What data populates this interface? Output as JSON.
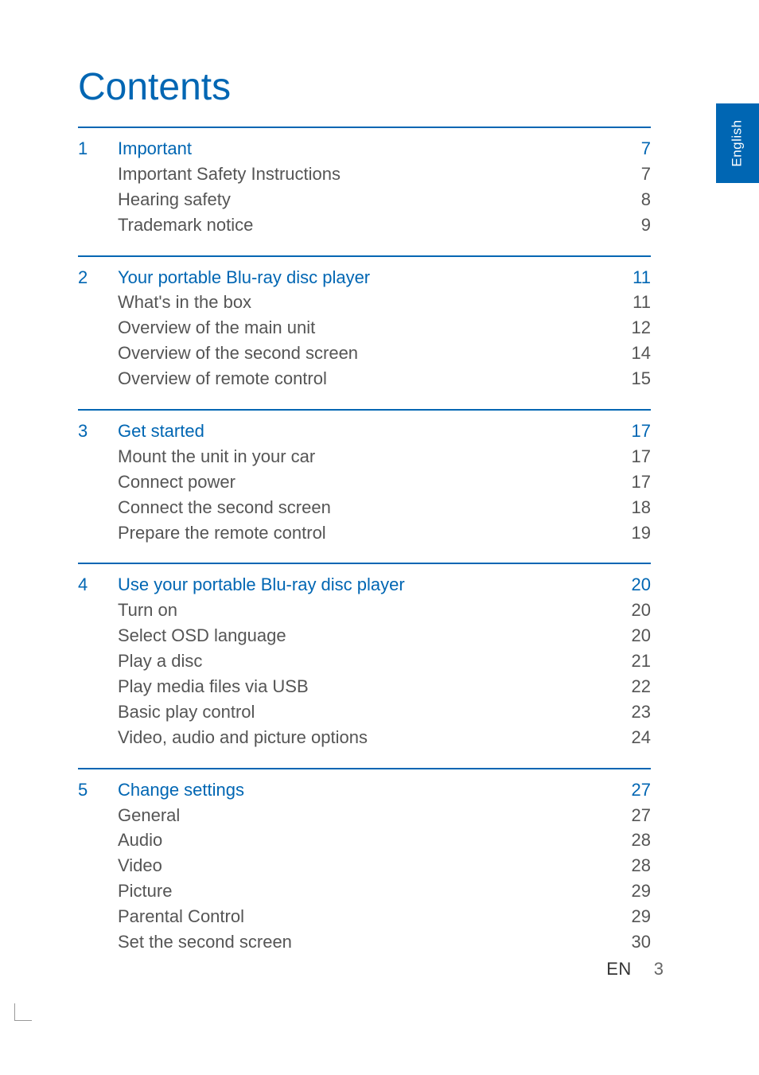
{
  "title": "Contents",
  "language_tab": "English",
  "colors": {
    "accent": "#0066b3",
    "body": "#555555",
    "bg": "#ffffff"
  },
  "typography": {
    "title_size": 48,
    "row_size": 22,
    "tab_size": 17
  },
  "footer": {
    "lang": "EN",
    "page": "3"
  },
  "sections": [
    {
      "num": "1",
      "heading": "Important",
      "page": "7",
      "subs": [
        {
          "label": "Important Safety Instructions",
          "page": "7"
        },
        {
          "label": "Hearing safety",
          "page": "8"
        },
        {
          "label": "Trademark notice",
          "page": "9"
        }
      ]
    },
    {
      "num": "2",
      "heading": "Your portable Blu-ray disc player",
      "page": "11",
      "subs": [
        {
          "label": "What's in the box",
          "page": "11"
        },
        {
          "label": "Overview of the main unit",
          "page": "12"
        },
        {
          "label": "Overview of the second screen",
          "page": "14"
        },
        {
          "label": "Overview of remote control",
          "page": "15"
        }
      ]
    },
    {
      "num": "3",
      "heading": "Get started",
      "page": "17",
      "subs": [
        {
          "label": "Mount the unit in your car",
          "page": "17"
        },
        {
          "label": "Connect power",
          "page": "17"
        },
        {
          "label": "Connect the second screen",
          "page": "18"
        },
        {
          "label": "Prepare the remote control",
          "page": "19"
        }
      ]
    },
    {
      "num": "4",
      "heading": "Use your portable Blu-ray disc player",
      "page": "20",
      "subs": [
        {
          "label": "Turn on",
          "page": "20"
        },
        {
          "label": "Select OSD language",
          "page": "20"
        },
        {
          "label": "Play a disc",
          "page": "21"
        },
        {
          "label": "Play media files via USB",
          "page": "22"
        },
        {
          "label": "Basic play control",
          "page": "23"
        },
        {
          "label": "Video, audio and picture options",
          "page": "24"
        }
      ]
    },
    {
      "num": "5",
      "heading": "Change settings",
      "page": "27",
      "subs": [
        {
          "label": "General",
          "page": "27"
        },
        {
          "label": "Audio",
          "page": "28"
        },
        {
          "label": "Video",
          "page": "28"
        },
        {
          "label": "Picture",
          "page": "29"
        },
        {
          "label": "Parental Control",
          "page": "29"
        },
        {
          "label": "Set the second screen",
          "page": "30"
        }
      ]
    }
  ]
}
